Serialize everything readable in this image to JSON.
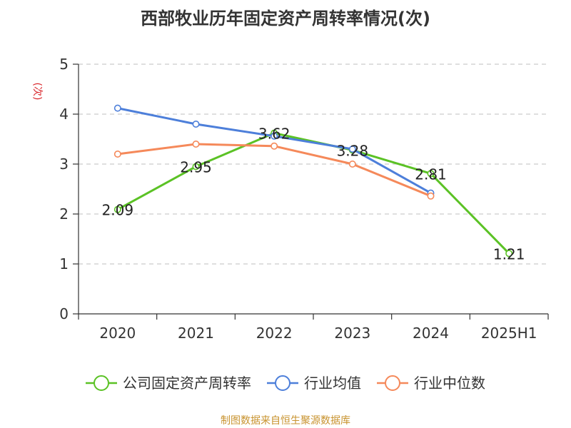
{
  "chart_data": {
    "type": "line",
    "title": "西部牧业历年固定资产周转率情况(次)",
    "ylabel": "(次)",
    "xlabel": "",
    "categories": [
      "2020",
      "2021",
      "2022",
      "2023",
      "2024",
      "2025H1"
    ],
    "ylim": [
      0,
      5
    ],
    "yticks": [
      "0",
      "1",
      "2",
      "3",
      "4",
      "5"
    ],
    "grid": true,
    "legend_position": "bottom",
    "series": [
      {
        "name": "公司固定资产周转率",
        "color": "#5bc225",
        "values": [
          2.09,
          2.95,
          3.62,
          3.28,
          2.81,
          1.21
        ],
        "labels": [
          "2.09",
          "2.95",
          "3.62",
          "3.28",
          "2.81",
          "1.21"
        ]
      },
      {
        "name": "行业均值",
        "color": "#4d7fda",
        "values": [
          4.12,
          3.8,
          3.56,
          3.3,
          2.42,
          null
        ]
      },
      {
        "name": "行业中位数",
        "color": "#f5895a",
        "values": [
          3.2,
          3.4,
          3.36,
          3.0,
          2.36,
          null
        ]
      }
    ],
    "source": "制图数据来自恒生聚源数据库",
    "colors": {
      "ylabel": "#d9262b",
      "source": "#c8932f",
      "grid": "#cccccc",
      "axis": "#333333"
    }
  }
}
